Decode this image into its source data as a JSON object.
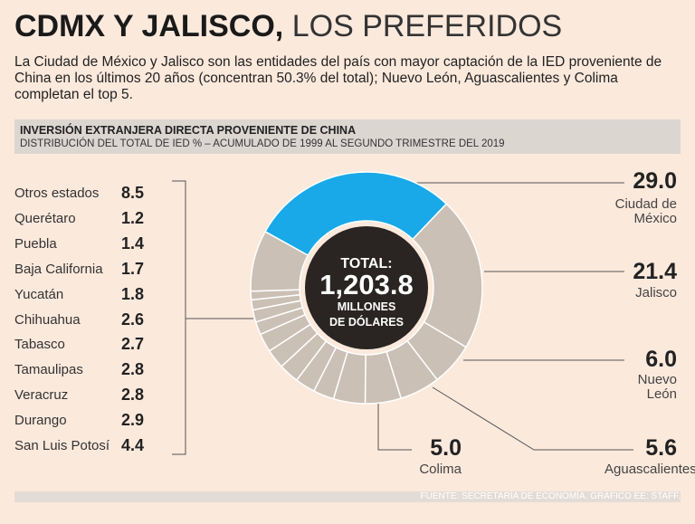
{
  "chart_data": {
    "type": "pie",
    "title_bold": "CDMX Y JALISCO,",
    "title_light": "LOS PREFERIDOS",
    "description": "La Ciudad de México y Jalisco son las entidades del país con mayor captación de la IED proveniente de China en los últimos 20 años (concentran 50.3% del total); Nuevo León, Aguascalientes y Colima completan el top 5.",
    "chart_title": "INVERSIÓN EXTRANJERA DIRECTA PROVENIENTE DE CHINA",
    "subtitle": "DISTRIBUCIÓN DEL TOTAL DE IED % – ACUMULADO DE 1999 AL SEGUNDO TRIMESTRE DEL 2019",
    "categories": [
      "Ciudad de México",
      "Jalisco",
      "Nuevo León",
      "Aguascalientes",
      "Colima",
      "San Luis Potosí",
      "Durango",
      "Veracruz",
      "Tamaulipas",
      "Tabasco",
      "Chihuahua",
      "Yucatán",
      "Baja California",
      "Puebla",
      "Querétaro",
      "Otros estados"
    ],
    "values": [
      29.0,
      21.4,
      6.0,
      5.6,
      5.0,
      4.4,
      2.9,
      2.8,
      2.8,
      2.7,
      2.6,
      1.8,
      1.7,
      1.4,
      1.2,
      8.5
    ],
    "value_labels": [
      "29.0",
      "21.4",
      "6.0",
      "5.6",
      "5.0",
      "4.4",
      "2.9",
      "2.8",
      "2.8",
      "2.7",
      "2.6",
      "1.8",
      "1.7",
      "1.4",
      "1.2",
      "8.5"
    ],
    "colors": [
      "#19a9e9",
      "#cbc0b5",
      "#cbc0b5",
      "#cbc0b5",
      "#cbc0b5",
      "#cbc0b5",
      "#cbc0b5",
      "#cbc0b5",
      "#cbc0b5",
      "#cbc0b5",
      "#cbc0b5",
      "#cbc0b5",
      "#cbc0b5",
      "#cbc0b5",
      "#cbc0b5",
      "#cbc0b5"
    ],
    "center_label": "TOTAL:",
    "total": {
      "value": 1203.8,
      "label": "1,203.8"
    },
    "total_unit": "MILLONES DE DÓLARES",
    "source": "FUENTE: SECRETARÍA DE ECONOMÍA. GRÁFICO EE: STAFF."
  }
}
